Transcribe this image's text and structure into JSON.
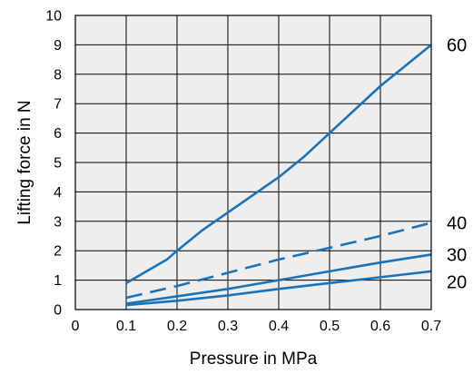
{
  "chart_data": {
    "type": "line",
    "title": "",
    "xlabel": "Pressure in MPa",
    "ylabel": "Lifting force in N",
    "xlim": [
      0,
      0.7
    ],
    "ylim": [
      0,
      10
    ],
    "x_ticks": [
      "0",
      "0.1",
      "0.2",
      "0.3",
      "0.4",
      "0.5",
      "0.6",
      "0.7"
    ],
    "y_ticks": [
      "0",
      "1",
      "2",
      "3",
      "4",
      "5",
      "6",
      "7",
      "8",
      "9",
      "10"
    ],
    "grid": true,
    "plot_background": "#eeeeee",
    "series": [
      {
        "name": "60",
        "color": "#1a73b8",
        "dash": "solid",
        "points": [
          [
            0.1,
            0.9
          ],
          [
            0.13,
            1.2
          ],
          [
            0.18,
            1.7
          ],
          [
            0.2,
            2.0
          ],
          [
            0.25,
            2.7
          ],
          [
            0.3,
            3.3
          ],
          [
            0.35,
            3.9
          ],
          [
            0.4,
            4.5
          ],
          [
            0.45,
            5.2
          ],
          [
            0.5,
            6.0
          ],
          [
            0.55,
            6.8
          ],
          [
            0.6,
            7.6
          ],
          [
            0.65,
            8.3
          ],
          [
            0.7,
            9.0
          ]
        ]
      },
      {
        "name": "40",
        "color": "#1a73b8",
        "dash": "dashed",
        "points": [
          [
            0.1,
            0.4
          ],
          [
            0.2,
            0.8
          ],
          [
            0.3,
            1.25
          ],
          [
            0.4,
            1.7
          ],
          [
            0.5,
            2.1
          ],
          [
            0.6,
            2.5
          ],
          [
            0.7,
            2.95
          ]
        ]
      },
      {
        "name": "30",
        "color": "#1a73b8",
        "dash": "solid",
        "points": [
          [
            0.1,
            0.2
          ],
          [
            0.2,
            0.45
          ],
          [
            0.3,
            0.7
          ],
          [
            0.4,
            1.0
          ],
          [
            0.5,
            1.3
          ],
          [
            0.6,
            1.6
          ],
          [
            0.7,
            1.87
          ]
        ]
      },
      {
        "name": "20",
        "color": "#1a73b8",
        "dash": "solid",
        "points": [
          [
            0.1,
            0.15
          ],
          [
            0.2,
            0.3
          ],
          [
            0.3,
            0.48
          ],
          [
            0.4,
            0.7
          ],
          [
            0.5,
            0.9
          ],
          [
            0.6,
            1.1
          ],
          [
            0.7,
            1.3
          ]
        ]
      }
    ]
  }
}
